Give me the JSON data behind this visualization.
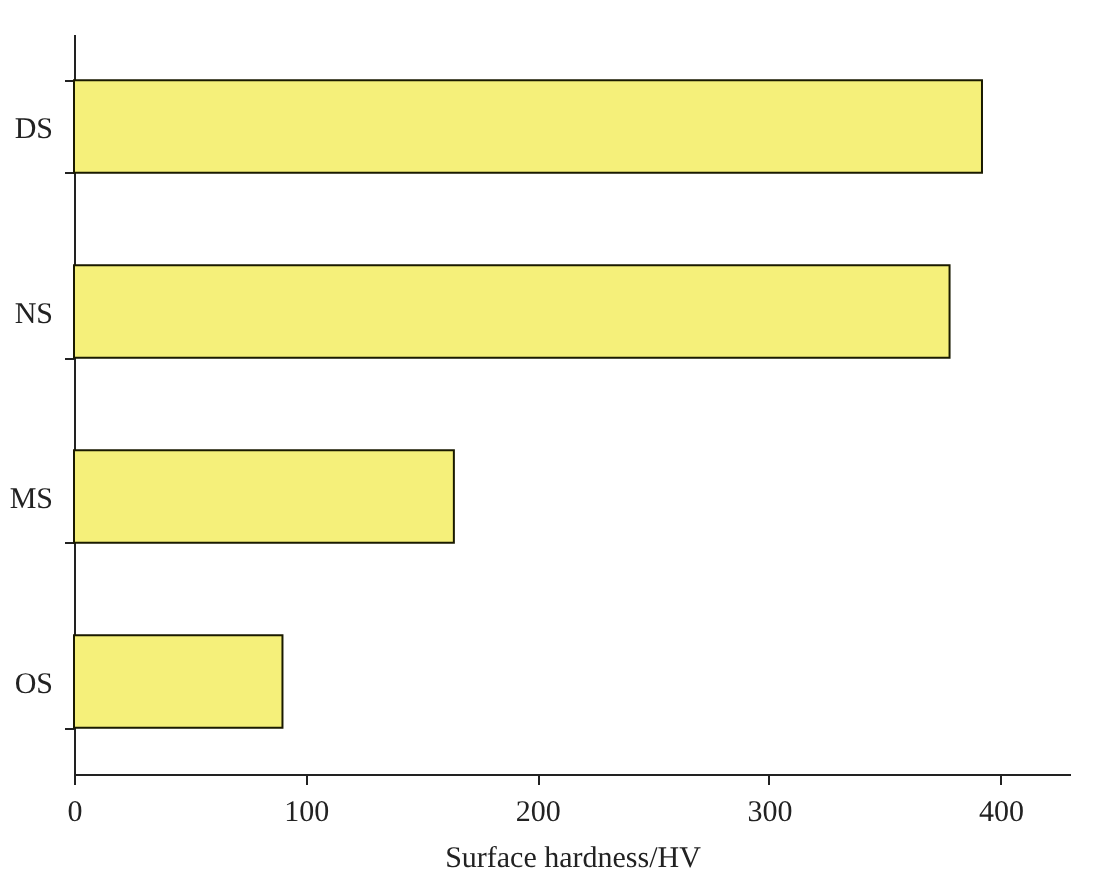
{
  "chart_data": {
    "type": "bar",
    "orientation": "horizontal",
    "xlabel": "Surface hardness/HV",
    "categories": [
      "DS",
      "NS",
      "MS",
      "OS"
    ],
    "values": [
      392,
      378,
      164,
      90
    ],
    "color": "#f5f07a",
    "xlim": [
      0,
      430
    ],
    "xticks": [
      0,
      100,
      200,
      300,
      400
    ],
    "grid": false
  }
}
